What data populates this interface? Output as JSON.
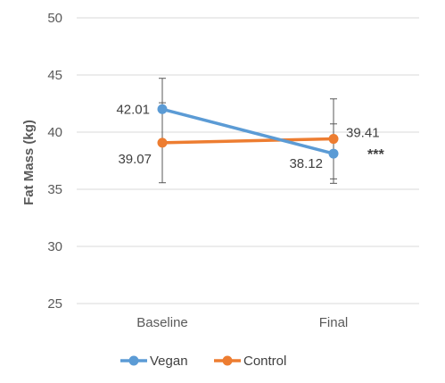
{
  "chart_data": {
    "type": "line",
    "categories": [
      "Baseline",
      "Final"
    ],
    "ylabel": "Fat Mass (kg)",
    "ylim": [
      25,
      50
    ],
    "yticks": [
      25,
      30,
      35,
      40,
      45,
      50
    ],
    "grid": true,
    "legend_position": "bottom",
    "series": [
      {
        "name": "Vegan",
        "color": "#5B9BD5",
        "values": [
          42.01,
          38.12
        ],
        "value_labels": [
          "42.01",
          "38.12"
        ],
        "error": [
          2.7,
          2.6
        ]
      },
      {
        "name": "Control",
        "color": "#ED7D31",
        "values": [
          39.07,
          39.41
        ],
        "value_labels": [
          "39.07",
          "39.41"
        ],
        "error": [
          3.5,
          3.5
        ]
      }
    ],
    "annotations": [
      {
        "text": "***",
        "category": "Final"
      }
    ]
  }
}
